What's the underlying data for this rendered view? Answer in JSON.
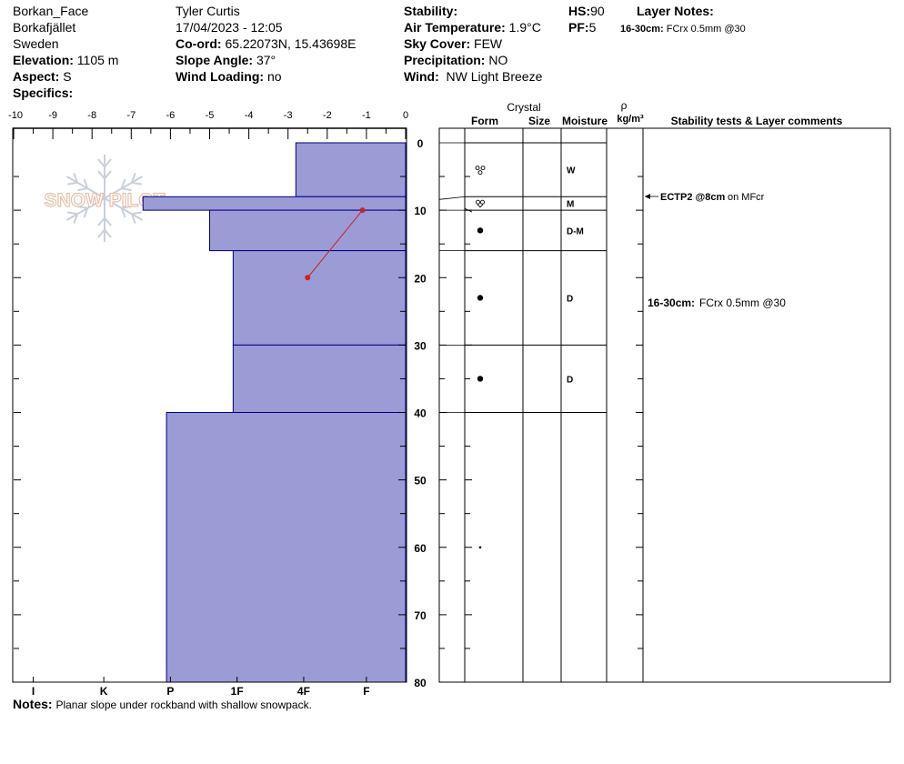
{
  "header": {
    "location": "Borkan_Face",
    "region": "Borkafjället",
    "country": "Sweden",
    "elevation_label": "Elevation:",
    "elevation_value": "1105 m",
    "aspect_label": "Aspect:",
    "aspect_value": "S",
    "specifics_label": "Specifics:",
    "observer": "Tyler Curtis",
    "datetime": "17/04/2023 - 12:05",
    "coord_label": "Co-ord:",
    "coord_value": "65.22073N, 15.43698E",
    "slope_label": "Slope Angle:",
    "slope_value": "37°",
    "wind_loading_label": "Wind Loading:",
    "wind_loading_value": "no",
    "stability_label": "Stability:",
    "air_temp_label": "Air Temperature:",
    "air_temp_value": "1.9°C",
    "sky_label": "Sky Cover:",
    "sky_value": "FEW",
    "precip_label": "Precipitation:",
    "precip_value": "NO",
    "wind_label": "Wind:",
    "wind_value": "NW Light Breeze",
    "hs_label": "HS:",
    "hs_value": "90",
    "pf_label": "PF:",
    "pf_value": "5",
    "layer_notes_label": "Layer Notes:",
    "layer_note_depth": "16-30cm:",
    "layer_note_text": "FCrx 0.5mm @30"
  },
  "columns": {
    "crystal": "Crystal",
    "form": "Form",
    "size": "Size",
    "moisture": "Moisture",
    "rho": "ρ",
    "density_unit": "kg/m³",
    "comments": "Stability tests & Layer comments"
  },
  "logo_text": "SNOW PILOT",
  "notes_label": "Notes:",
  "notes_text": "Planar slope under rockband with shallow snowpack.",
  "colors": {
    "layer_fill": "#9b9bd6",
    "layer_edge": "#000080",
    "temp_line": "#cc2222"
  },
  "chart_data": {
    "type": "bar",
    "temperature_axis": {
      "min": -10,
      "max": 0,
      "ticks": [
        -10,
        -9,
        -8,
        -7,
        -6,
        -5,
        -4,
        -3,
        -2,
        -1,
        0
      ]
    },
    "depth_axis": {
      "min": 0,
      "max": 80,
      "ticks": [
        0,
        10,
        20,
        30,
        40,
        50,
        60,
        70,
        80
      ]
    },
    "hardness_labels": [
      "I",
      "K",
      "P",
      "1F",
      "4F",
      "F"
    ],
    "hardness_values": [
      -9.5,
      -7.7,
      -6.0,
      -4.3,
      -2.6,
      -1.0
    ],
    "layers": [
      {
        "top": 0,
        "bottom": 8,
        "hardness": -2.8,
        "moisture": "W",
        "form": "melt-clusters"
      },
      {
        "top": 8,
        "bottom": 10,
        "hardness": -6.7,
        "moisture": "M",
        "form": "melt-freeze"
      },
      {
        "top": 10,
        "bottom": 16,
        "hardness": -5.0,
        "moisture": "D-M",
        "form": "dot"
      },
      {
        "top": 16,
        "bottom": 30,
        "hardness": -4.4,
        "moisture": "D",
        "form": "dot"
      },
      {
        "top": 30,
        "bottom": 40,
        "hardness": -4.4,
        "moisture": "D",
        "form": "dot"
      },
      {
        "top": 40,
        "bottom": 80,
        "hardness": -6.1,
        "moisture": "",
        "form": "small-dot"
      }
    ],
    "temperature_profile": [
      {
        "depth": 10,
        "temp": -1.1
      },
      {
        "depth": 20,
        "temp": -2.5
      }
    ],
    "stability_tests": [
      {
        "depth": 8,
        "label": "ECTP2 @8cm",
        "comment": "on MFcr"
      }
    ]
  }
}
